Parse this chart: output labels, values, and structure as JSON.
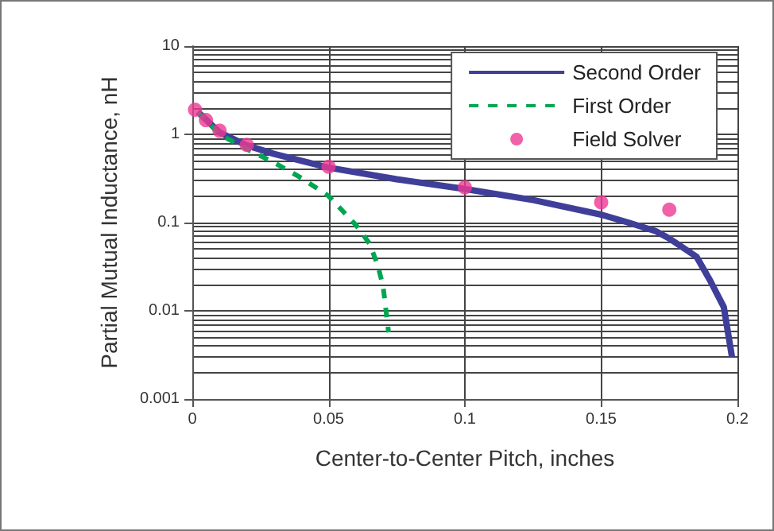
{
  "chart_data": {
    "type": "line",
    "xlabel": "Center-to-Center Pitch, inches",
    "ylabel": "Partial Mutual Inductance, nH",
    "xlim": [
      0,
      0.2
    ],
    "xticks": [
      0,
      0.05,
      0.1,
      0.15,
      0.2
    ],
    "ylim": [
      0.001,
      10
    ],
    "yticks": [
      0.001,
      0.01,
      0.1,
      1,
      10
    ],
    "log": "y",
    "grid": true,
    "legend": "top right",
    "series": [
      {
        "name": "Second Order",
        "color": "#3f3f9a",
        "line_style": "solid",
        "marker": "none",
        "x": [
          0.002,
          0.01,
          0.02,
          0.03,
          0.05,
          0.075,
          0.1,
          0.125,
          0.15,
          0.16,
          0.17,
          0.175,
          0.185,
          0.19,
          0.195,
          0.198
        ],
        "values": [
          1.8,
          1.05,
          0.75,
          0.6,
          0.42,
          0.31,
          0.24,
          0.18,
          0.123,
          0.1,
          0.08,
          0.066,
          0.041,
          0.022,
          0.011,
          0.003
        ]
      },
      {
        "name": "First Order",
        "color": "#00a651",
        "line_style": "dashed",
        "marker": "none",
        "x": [
          0.002,
          0.01,
          0.02,
          0.03,
          0.04,
          0.05,
          0.06,
          0.065,
          0.068,
          0.07,
          0.072
        ],
        "values": [
          1.8,
          1.0,
          0.68,
          0.48,
          0.32,
          0.2,
          0.094,
          0.058,
          0.033,
          0.019,
          0.0057
        ]
      },
      {
        "name": "Field Solver",
        "type": "scatter",
        "color": "#ee3a94",
        "marker": "circle",
        "x": [
          0.001,
          0.005,
          0.01,
          0.02,
          0.05,
          0.1,
          0.15,
          0.175
        ],
        "values": [
          1.9,
          1.45,
          1.1,
          0.76,
          0.43,
          0.25,
          0.17,
          0.14
        ]
      }
    ]
  }
}
